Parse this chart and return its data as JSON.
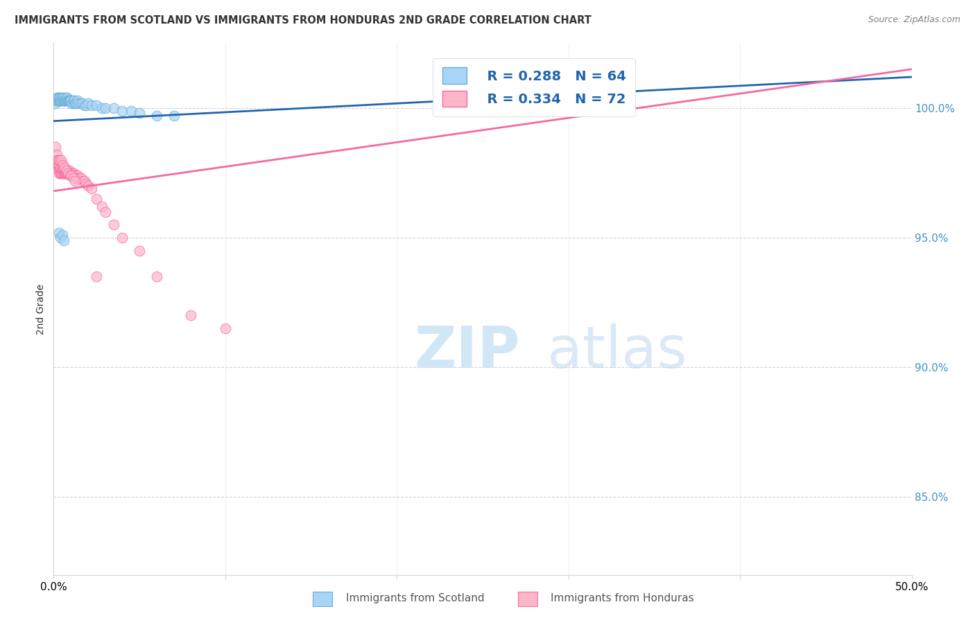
{
  "title": "IMMIGRANTS FROM SCOTLAND VS IMMIGRANTS FROM HONDURAS 2ND GRADE CORRELATION CHART",
  "source": "Source: ZipAtlas.com",
  "ylabel": "2nd Grade",
  "yticks": [
    85.0,
    90.0,
    95.0,
    100.0
  ],
  "ytick_labels": [
    "85.0%",
    "90.0%",
    "95.0%",
    "100.0%"
  ],
  "xlim": [
    0.0,
    50.0
  ],
  "ylim": [
    82.0,
    102.5
  ],
  "scotland_color": "#a8d4f5",
  "honduras_color": "#ffb6c8",
  "scotland_edge": "#6baed6",
  "honduras_edge": "#f768a1",
  "trend_scotland_color": "#2166ac",
  "trend_honduras_color": "#f768a1",
  "legend_R_scotland": "R = 0.288",
  "legend_N_scotland": "N = 64",
  "legend_R_honduras": "R = 0.334",
  "legend_N_honduras": "N = 72",
  "scotland_x": [
    0.1,
    0.15,
    0.18,
    0.2,
    0.22,
    0.25,
    0.28,
    0.3,
    0.32,
    0.35,
    0.38,
    0.4,
    0.42,
    0.45,
    0.48,
    0.5,
    0.52,
    0.55,
    0.58,
    0.6,
    0.62,
    0.65,
    0.68,
    0.7,
    0.72,
    0.75,
    0.78,
    0.8,
    0.82,
    0.85,
    0.88,
    0.9,
    0.92,
    0.95,
    0.98,
    1.0,
    1.05,
    1.1,
    1.15,
    1.2,
    1.25,
    1.3,
    1.35,
    1.4,
    1.5,
    1.6,
    1.7,
    1.8,
    1.9,
    2.0,
    2.2,
    2.5,
    2.8,
    3.0,
    3.5,
    4.0,
    4.5,
    5.0,
    6.0,
    7.0,
    0.3,
    0.4,
    0.5,
    0.6
  ],
  "scotland_y": [
    100.2,
    100.3,
    100.4,
    100.3,
    100.4,
    100.3,
    100.4,
    100.3,
    100.4,
    100.3,
    100.3,
    100.4,
    100.3,
    100.3,
    100.4,
    100.3,
    100.4,
    100.3,
    100.3,
    100.4,
    100.3,
    100.3,
    100.3,
    100.3,
    100.4,
    100.3,
    100.3,
    100.4,
    100.3,
    100.3,
    100.3,
    100.3,
    100.3,
    100.3,
    100.3,
    100.3,
    100.2,
    100.2,
    100.3,
    100.3,
    100.2,
    100.2,
    100.2,
    100.3,
    100.2,
    100.2,
    100.2,
    100.1,
    100.1,
    100.2,
    100.1,
    100.1,
    100.0,
    100.0,
    100.0,
    99.9,
    99.9,
    99.8,
    99.7,
    99.7,
    95.2,
    95.0,
    95.1,
    94.9
  ],
  "honduras_x": [
    0.1,
    0.15,
    0.18,
    0.2,
    0.22,
    0.25,
    0.28,
    0.3,
    0.32,
    0.35,
    0.38,
    0.4,
    0.42,
    0.45,
    0.48,
    0.5,
    0.52,
    0.55,
    0.58,
    0.6,
    0.62,
    0.65,
    0.68,
    0.7,
    0.72,
    0.75,
    0.78,
    0.8,
    0.82,
    0.85,
    0.88,
    0.9,
    0.92,
    0.95,
    0.98,
    1.0,
    1.05,
    1.1,
    1.15,
    1.2,
    1.25,
    1.3,
    1.35,
    1.4,
    1.5,
    1.6,
    1.7,
    1.8,
    1.9,
    2.0,
    2.2,
    2.5,
    2.8,
    3.0,
    3.5,
    4.0,
    5.0,
    6.0,
    8.0,
    10.0,
    0.25,
    0.35,
    0.45,
    0.55,
    0.65,
    0.75,
    0.85,
    0.95,
    1.05,
    1.15,
    1.25,
    2.5
  ],
  "honduras_y": [
    98.5,
    97.8,
    98.2,
    98.0,
    97.9,
    97.7,
    97.8,
    97.5,
    97.8,
    97.6,
    97.5,
    97.7,
    97.5,
    97.5,
    97.6,
    97.5,
    97.7,
    97.6,
    97.5,
    97.5,
    97.6,
    97.5,
    97.5,
    97.5,
    97.6,
    97.5,
    97.5,
    97.6,
    97.5,
    97.5,
    97.5,
    97.5,
    97.6,
    97.5,
    97.5,
    97.5,
    97.5,
    97.4,
    97.5,
    97.4,
    97.4,
    97.3,
    97.3,
    97.4,
    97.3,
    97.3,
    97.2,
    97.2,
    97.1,
    97.0,
    96.9,
    96.5,
    96.2,
    96.0,
    95.5,
    95.0,
    94.5,
    93.5,
    92.0,
    91.5,
    98.0,
    98.0,
    98.0,
    97.8,
    97.7,
    97.6,
    97.5,
    97.4,
    97.4,
    97.3,
    97.2,
    93.5
  ],
  "trend_scotland_x0": 0.0,
  "trend_scotland_y0": 99.5,
  "trend_scotland_x1": 50.0,
  "trend_scotland_y1": 101.2,
  "trend_honduras_x0": 0.0,
  "trend_honduras_y0": 96.8,
  "trend_honduras_x1": 50.0,
  "trend_honduras_y1": 101.5
}
